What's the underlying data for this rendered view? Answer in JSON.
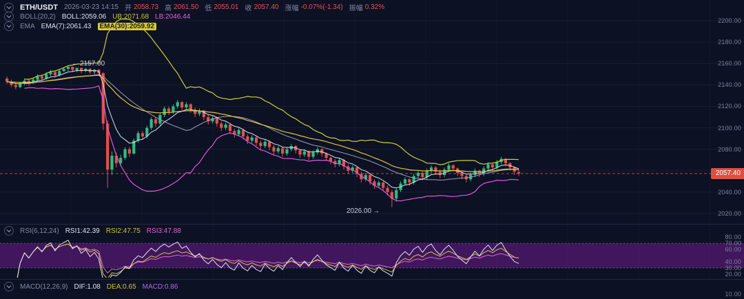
{
  "meta": {
    "colors": {
      "background": "#0d1124",
      "up": "#2ebd85",
      "down": "#e2504a",
      "boll_ub": "#cdd333",
      "boll_lb": "#df59df",
      "boll_mid": "#9aa2b8",
      "ema7": "#dfe3ee",
      "ema30": "#e0c53c",
      "rsi1": "#e2e5f0",
      "rsi2": "#d3c63e",
      "rsi3": "#e264d9",
      "rsi_band": "rgba(116,30,150,0.5)",
      "last_price_line": "rgba(223,90,80,0.8)",
      "badge": "#dd4f44",
      "grid": "rgba(255,255,255,0.05)",
      "separator": "#232945"
    }
  },
  "header": {
    "symbol": "ETH/USDT",
    "datetime": "2026-03-23 14:15",
    "open_label": "开",
    "open": "2058.73",
    "high_label": "高",
    "high": "2061.50",
    "low_label": "低",
    "low": "2055.01",
    "close_label": "收",
    "close": "2057.40",
    "change_label": "涨幅",
    "change": "-0.07%(-1.34)",
    "amplitude_label": "振幅",
    "amplitude": "0.32%"
  },
  "boll_row": {
    "title": "BOLL(20,2)",
    "mid": "BOLL:2059.06",
    "ub": "UB:2071.68",
    "lb": "LB:2046.44"
  },
  "ema_row": {
    "title": "EMA",
    "ema7": "EMA(7):2061.43",
    "ema30": "EMA(30):2059.92"
  },
  "rsi_row": {
    "title": "RSI(6,12,24)",
    "rsi1": "RSI1:42.39",
    "rsi2": "RSI2:47.75",
    "rsi3": "RSI3:47.88"
  },
  "macd_row": {
    "title": "MACD(12,26,9)",
    "dif": "DIF:1.08",
    "dea": "DEA:0.65",
    "macd": "MACD:0.86"
  },
  "price_axis": {
    "labels": [
      "2200.00",
      "2180.00",
      "2160.00",
      "2140.00",
      "2120.00",
      "2100.00",
      "2080.00",
      "2060.00",
      "2040.00",
      "2020.00"
    ]
  },
  "rsi_axis": {
    "labels": [
      "80.00",
      "70.00",
      "60.00",
      "40.00",
      "30.00",
      "20.00"
    ]
  },
  "macd_axis": {
    "labels": [
      "10.00"
    ]
  },
  "price_tag": "2057.40",
  "annotations": {
    "high": "2157.00",
    "low": "2026.00"
  },
  "chart_data": {
    "type": "candlestick",
    "title": "ETH/USDT",
    "datetime": "2026-03-23 14:15",
    "ylim": [
      2010,
      2220
    ],
    "price_gridlines": [
      2200,
      2180,
      2160,
      2140,
      2120,
      2100,
      2080,
      2060,
      2040,
      2020
    ],
    "last_price": 2057.4,
    "current_ohlc": {
      "open": 2058.73,
      "high": 2061.5,
      "low": 2055.01,
      "close": 2057.4,
      "change_pct": -0.07,
      "change_abs": -1.34,
      "amplitude_pct": 0.32
    },
    "marked_high": 2157.0,
    "marked_low": 2026.0,
    "overlays": {
      "boll": {
        "period": 20,
        "stddev": 2,
        "mid": 2059.06,
        "ub": 2071.68,
        "lb": 2046.44
      },
      "ema": [
        {
          "period": 7,
          "value": 2061.43
        },
        {
          "period": 30,
          "value": 2059.92
        }
      ]
    },
    "rsi": {
      "periods": [
        6,
        12,
        24
      ],
      "current": [
        42.39,
        47.75,
        47.88
      ],
      "band": [
        30,
        70
      ],
      "axis": [
        80,
        70,
        60,
        40,
        30,
        20
      ]
    },
    "macd": {
      "params": [
        12,
        26,
        9
      ],
      "dif": 1.08,
      "dea": 0.65,
      "macd": 0.86,
      "axis": [
        10
      ]
    },
    "candles": [
      [
        2146,
        2148,
        2141,
        2143
      ],
      [
        2143,
        2145,
        2138,
        2140
      ],
      [
        2140,
        2142,
        2136,
        2138
      ],
      [
        2138,
        2143,
        2137,
        2141
      ],
      [
        2141,
        2146,
        2140,
        2144
      ],
      [
        2144,
        2146,
        2139,
        2142
      ],
      [
        2142,
        2147,
        2141,
        2145
      ],
      [
        2145,
        2150,
        2144,
        2148
      ],
      [
        2148,
        2150,
        2144,
        2146
      ],
      [
        2146,
        2152,
        2145,
        2150
      ],
      [
        2150,
        2154,
        2148,
        2152
      ],
      [
        2152,
        2153,
        2147,
        2149
      ],
      [
        2149,
        2155,
        2148,
        2153
      ],
      [
        2153,
        2156,
        2152,
        2155
      ],
      [
        2155,
        2157,
        2153,
        2157
      ],
      [
        2157,
        2157,
        2152,
        2154
      ],
      [
        2154,
        2156,
        2152,
        2156
      ],
      [
        2156,
        2156,
        2151,
        2153
      ],
      [
        2153,
        2156,
        2152,
        2155
      ],
      [
        2155,
        2156,
        2150,
        2152
      ],
      [
        2152,
        2155,
        2150,
        2154
      ],
      [
        2154,
        2155,
        2149,
        2151
      ],
      [
        2151,
        2152,
        2098,
        2104
      ],
      [
        2104,
        2107,
        2044,
        2061
      ],
      [
        2061,
        2078,
        2056,
        2074
      ],
      [
        2074,
        2077,
        2063,
        2067
      ],
      [
        2067,
        2075,
        2065,
        2072
      ],
      [
        2072,
        2082,
        2070,
        2080
      ],
      [
        2080,
        2082,
        2073,
        2076
      ],
      [
        2076,
        2090,
        2075,
        2088
      ],
      [
        2088,
        2097,
        2086,
        2095
      ],
      [
        2095,
        2097,
        2089,
        2092
      ],
      [
        2092,
        2102,
        2090,
        2100
      ],
      [
        2100,
        2110,
        2098,
        2108
      ],
      [
        2108,
        2110,
        2101,
        2104
      ],
      [
        2104,
        2114,
        2102,
        2112
      ],
      [
        2112,
        2120,
        2110,
        2118
      ],
      [
        2118,
        2120,
        2112,
        2115
      ],
      [
        2115,
        2122,
        2113,
        2120
      ],
      [
        2120,
        2126,
        2118,
        2124
      ],
      [
        2124,
        2125,
        2116,
        2119
      ],
      [
        2119,
        2124,
        2117,
        2122
      ],
      [
        2122,
        2123,
        2114,
        2117
      ],
      [
        2117,
        2119,
        2110,
        2113
      ],
      [
        2113,
        2118,
        2111,
        2116
      ],
      [
        2116,
        2117,
        2107,
        2110
      ],
      [
        2110,
        2112,
        2103,
        2106
      ],
      [
        2106,
        2111,
        2104,
        2109
      ],
      [
        2109,
        2110,
        2101,
        2104
      ],
      [
        2104,
        2106,
        2097,
        2100
      ],
      [
        2100,
        2105,
        2098,
        2103
      ],
      [
        2103,
        2104,
        2094,
        2097
      ],
      [
        2097,
        2099,
        2091,
        2094
      ],
      [
        2094,
        2100,
        2092,
        2098
      ],
      [
        2098,
        2099,
        2089,
        2092
      ],
      [
        2092,
        2094,
        2085,
        2088
      ],
      [
        2088,
        2093,
        2086,
        2091
      ],
      [
        2091,
        2092,
        2083,
        2086
      ],
      [
        2086,
        2088,
        2080,
        2083
      ],
      [
        2083,
        2089,
        2081,
        2087
      ],
      [
        2087,
        2088,
        2079,
        2082
      ],
      [
        2082,
        2084,
        2075,
        2078
      ],
      [
        2078,
        2083,
        2076,
        2081
      ],
      [
        2081,
        2082,
        2073,
        2076
      ],
      [
        2076,
        2082,
        2074,
        2080
      ],
      [
        2080,
        2085,
        2078,
        2083
      ],
      [
        2083,
        2084,
        2076,
        2079
      ],
      [
        2079,
        2080,
        2072,
        2075
      ],
      [
        2075,
        2080,
        2073,
        2078
      ],
      [
        2078,
        2079,
        2070,
        2073
      ],
      [
        2073,
        2079,
        2071,
        2077
      ],
      [
        2077,
        2082,
        2075,
        2080
      ],
      [
        2080,
        2081,
        2073,
        2076
      ],
      [
        2076,
        2077,
        2069,
        2072
      ],
      [
        2072,
        2073,
        2066,
        2069
      ],
      [
        2069,
        2071,
        2063,
        2066
      ],
      [
        2066,
        2072,
        2064,
        2070
      ],
      [
        2070,
        2071,
        2061,
        2064
      ],
      [
        2064,
        2066,
        2057,
        2060
      ],
      [
        2060,
        2065,
        2058,
        2063
      ],
      [
        2063,
        2064,
        2054,
        2057
      ],
      [
        2057,
        2059,
        2049,
        2052
      ],
      [
        2052,
        2058,
        2050,
        2056
      ],
      [
        2056,
        2057,
        2047,
        2050
      ],
      [
        2050,
        2052,
        2043,
        2046
      ],
      [
        2046,
        2051,
        2044,
        2049
      ],
      [
        2049,
        2050,
        2041,
        2044
      ],
      [
        2044,
        2046,
        2037,
        2040
      ],
      [
        2040,
        2042,
        2026,
        2034
      ],
      [
        2034,
        2044,
        2031,
        2042
      ],
      [
        2042,
        2050,
        2040,
        2048
      ],
      [
        2048,
        2054,
        2046,
        2052
      ],
      [
        2052,
        2053,
        2046,
        2049
      ],
      [
        2049,
        2057,
        2047,
        2055
      ],
      [
        2055,
        2060,
        2053,
        2058
      ],
      [
        2058,
        2059,
        2051,
        2054
      ],
      [
        2054,
        2062,
        2052,
        2060
      ],
      [
        2060,
        2065,
        2058,
        2063
      ],
      [
        2063,
        2064,
        2056,
        2059
      ],
      [
        2059,
        2061,
        2053,
        2056
      ],
      [
        2056,
        2063,
        2054,
        2061
      ],
      [
        2061,
        2067,
        2059,
        2065
      ],
      [
        2065,
        2066,
        2059,
        2062
      ],
      [
        2062,
        2063,
        2055,
        2058
      ],
      [
        2058,
        2059,
        2052,
        2055
      ],
      [
        2055,
        2057,
        2049,
        2052
      ],
      [
        2052,
        2058,
        2050,
        2056
      ],
      [
        2056,
        2062,
        2054,
        2060
      ],
      [
        2060,
        2061,
        2054,
        2057
      ],
      [
        2057,
        2064,
        2055,
        2062
      ],
      [
        2062,
        2068,
        2060,
        2066
      ],
      [
        2066,
        2067,
        2060,
        2063
      ],
      [
        2063,
        2070,
        2061,
        2068
      ],
      [
        2068,
        2073,
        2066,
        2071
      ],
      [
        2071,
        2072,
        2064,
        2067
      ],
      [
        2067,
        2068,
        2060,
        2063
      ],
      [
        2063,
        2064,
        2056,
        2059
      ],
      [
        2058.73,
        2061.5,
        2055.01,
        2057.4
      ]
    ]
  }
}
